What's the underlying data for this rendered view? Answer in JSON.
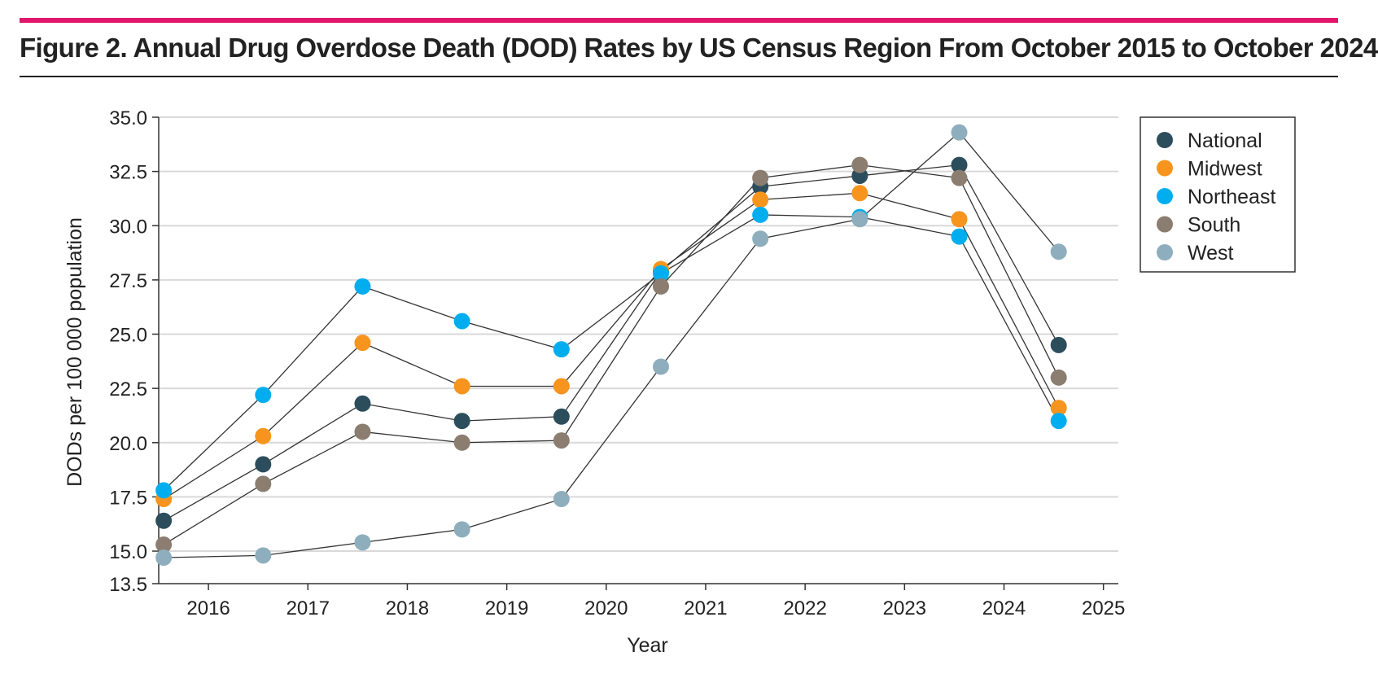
{
  "figure": {
    "title": "Figure 2. Annual Drug Overdose Death (DOD) Rates by US Census Region From October 2015 to October 2024"
  },
  "colors": {
    "accent_rule": "#e0156b",
    "National": "#2c4d5c",
    "Midwest": "#f7941d",
    "Northeast": "#00aeef",
    "South": "#8b7d6f",
    "West": "#8eaebd"
  },
  "chart_data": {
    "type": "line",
    "title": "Annual Drug Overdose Death (DOD) Rates by US Census Region From October 2015 to October 2024",
    "xlabel": "Year",
    "ylabel": "DODs per 100 000 population",
    "xlim": [
      2015.75,
      2025.4
    ],
    "ylim": [
      13.5,
      35.0
    ],
    "x_ticks": [
      "2016",
      "2017",
      "2018",
      "2019",
      "2020",
      "2021",
      "2022",
      "2023",
      "2024",
      "2025"
    ],
    "y_ticks": [
      "13.5",
      "15.0",
      "17.5",
      "20.0",
      "22.5",
      "25.0",
      "27.5",
      "30.0",
      "32.5",
      "35.0"
    ],
    "grid": "horizontal",
    "legend_position": "top-right",
    "x": [
      2015.8,
      2016.8,
      2017.8,
      2018.8,
      2019.8,
      2020.8,
      2021.8,
      2022.8,
      2023.8,
      2024.8
    ],
    "series": [
      {
        "name": "National",
        "values": [
          16.4,
          19.0,
          21.8,
          21.0,
          21.2,
          27.9,
          31.8,
          32.3,
          32.8,
          24.5
        ]
      },
      {
        "name": "Midwest",
        "values": [
          17.4,
          20.3,
          24.6,
          22.6,
          22.6,
          28.0,
          31.2,
          31.5,
          30.3,
          21.6
        ]
      },
      {
        "name": "Northeast",
        "values": [
          17.8,
          22.2,
          27.2,
          25.6,
          24.3,
          27.8,
          30.5,
          30.4,
          29.5,
          21.0
        ]
      },
      {
        "name": "South",
        "values": [
          15.3,
          18.1,
          20.5,
          20.0,
          20.1,
          27.2,
          32.2,
          32.8,
          32.2,
          23.0
        ]
      },
      {
        "name": "West",
        "values": [
          14.7,
          14.8,
          15.4,
          16.0,
          17.4,
          23.5,
          29.4,
          30.3,
          34.3,
          28.8
        ]
      }
    ]
  }
}
